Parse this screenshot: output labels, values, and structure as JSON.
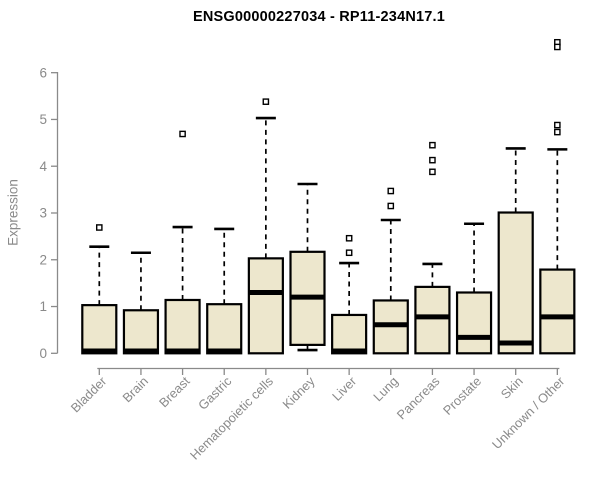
{
  "chart_data": {
    "type": "boxplot",
    "title": "ENSG00000227034 - RP11-234N17.1",
    "ylabel": "Expression",
    "xlabel": "",
    "ylim": [
      0,
      6
    ],
    "yticks": [
      "0",
      "1",
      "2",
      "3",
      "4",
      "5",
      "6"
    ],
    "grid": false,
    "legend": null,
    "colors": {
      "box_fill": "#EDE7CD",
      "box_stroke": "#000000",
      "median_stroke": "#000000",
      "axis_color": "#8a8a8a",
      "title_color": "#000000",
      "outlier_fill": "#ffffff"
    },
    "categories": [
      "Bladder",
      "Brain",
      "Breast",
      "Gastric",
      "Hematopoietic cells",
      "Kidney",
      "Liver",
      "Lung",
      "Pancreas",
      "Prostate",
      "Skin",
      "Unknown / Other"
    ],
    "boxes": [
      {
        "name": "Bladder",
        "whisker_low": 0,
        "q1": 0,
        "median": 0.05,
        "q3": 1.03,
        "whisker_high": 2.28,
        "outliers": [
          2.69
        ]
      },
      {
        "name": "Brain",
        "whisker_low": 0,
        "q1": 0,
        "median": 0.05,
        "q3": 0.92,
        "whisker_high": 2.15,
        "outliers": []
      },
      {
        "name": "Breast",
        "whisker_low": 0,
        "q1": 0,
        "median": 0.05,
        "q3": 1.14,
        "whisker_high": 2.7,
        "outliers": [
          4.69
        ]
      },
      {
        "name": "Gastric",
        "whisker_low": 0,
        "q1": 0,
        "median": 0.05,
        "q3": 1.05,
        "whisker_high": 2.66,
        "outliers": []
      },
      {
        "name": "Hematopoietic cells",
        "whisker_low": 0,
        "q1": 0,
        "median": 1.3,
        "q3": 2.03,
        "whisker_high": 5.03,
        "outliers": [
          5.38
        ]
      },
      {
        "name": "Kidney",
        "whisker_low": 0.07,
        "q1": 0.18,
        "median": 1.2,
        "q3": 2.17,
        "whisker_high": 3.62,
        "outliers": []
      },
      {
        "name": "Liver",
        "whisker_low": 0,
        "q1": 0,
        "median": 0.05,
        "q3": 0.82,
        "whisker_high": 1.93,
        "outliers": [
          2.46,
          2.15
        ]
      },
      {
        "name": "Lung",
        "whisker_low": 0,
        "q1": 0,
        "median": 0.61,
        "q3": 1.13,
        "whisker_high": 2.85,
        "outliers": [
          3.47,
          3.15
        ]
      },
      {
        "name": "Pancreas",
        "whisker_low": 0,
        "q1": 0,
        "median": 0.78,
        "q3": 1.42,
        "whisker_high": 1.91,
        "outliers": [
          4.45,
          4.13,
          3.88
        ]
      },
      {
        "name": "Prostate",
        "whisker_low": 0,
        "q1": 0,
        "median": 0.34,
        "q3": 1.3,
        "whisker_high": 2.77,
        "outliers": []
      },
      {
        "name": "Skin",
        "whisker_low": 0,
        "q1": 0,
        "median": 0.22,
        "q3": 3.01,
        "whisker_high": 4.38,
        "outliers": []
      },
      {
        "name": "Unknown / Other",
        "whisker_low": 0,
        "q1": 0,
        "median": 0.78,
        "q3": 1.79,
        "whisker_high": 4.36,
        "outliers": [
          6.65,
          6.55,
          4.88,
          4.73
        ]
      }
    ]
  }
}
